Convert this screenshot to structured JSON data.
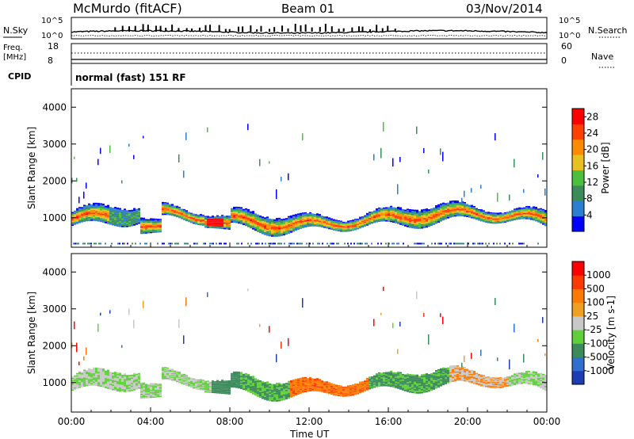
{
  "header": {
    "station": "McMurdo (fitACF)",
    "beam": "Beam 01",
    "date": "03/Nov/2014"
  },
  "top_panels": {
    "nsky_label": "N.Sky",
    "nsearch_label": "N.Search",
    "noise_ticks": [
      "10^5",
      "10^0"
    ],
    "freq_label": "Freq.",
    "freq_unit": "[MHz]",
    "freq_ticks": [
      "18",
      "8"
    ],
    "nave_label": "Nave",
    "nave_ticks": [
      "60",
      "0"
    ],
    "cpid_label": "CPID",
    "cpid_value": "normal (fast) 151 RF"
  },
  "colors": {
    "power": [
      "#0000ff",
      "#2a7fd0",
      "#3c8c5a",
      "#4cbf3c",
      "#e8c020",
      "#ff8c00",
      "#ff4000",
      "#ff0000"
    ],
    "velocity": [
      "#1e3cb4",
      "#2f6fd0",
      "#3a8a5a",
      "#5fcf3a",
      "#c8c8c8",
      "#f0a020",
      "#ff7a00",
      "#ff3a00",
      "#ff0000"
    ]
  },
  "chart_data": [
    {
      "type": "heatmap",
      "panel": "power",
      "ylabel": "Slant Range [km]",
      "xlabel": "Time UT",
      "x_ticks": [
        "00:00",
        "04:00",
        "08:00",
        "12:00",
        "16:00",
        "20:00",
        "00:00"
      ],
      "xlim_hours": [
        0,
        24
      ],
      "ylim_km": [
        200,
        4500
      ],
      "y_ticks": [
        1000,
        2000,
        3000,
        4000
      ],
      "colorbar": {
        "label": "Power [dB]",
        "ticks": [
          4,
          8,
          12,
          16,
          20,
          24,
          28
        ],
        "range": [
          0,
          30
        ]
      }
    },
    {
      "type": "heatmap",
      "panel": "velocity",
      "ylabel": "Slant Range [km]",
      "xlabel": "Time UT",
      "x_ticks": [
        "00:00",
        "04:00",
        "08:00",
        "12:00",
        "16:00",
        "20:00",
        "00:00"
      ],
      "xlim_hours": [
        0,
        24
      ],
      "ylim_km": [
        200,
        4500
      ],
      "y_ticks": [
        1000,
        2000,
        3000,
        4000
      ],
      "colorbar": {
        "label": "Velocity [m s-1]",
        "ticks": [
          1000,
          500,
          100,
          25,
          -25,
          -100,
          -500,
          -1000
        ]
      }
    }
  ]
}
